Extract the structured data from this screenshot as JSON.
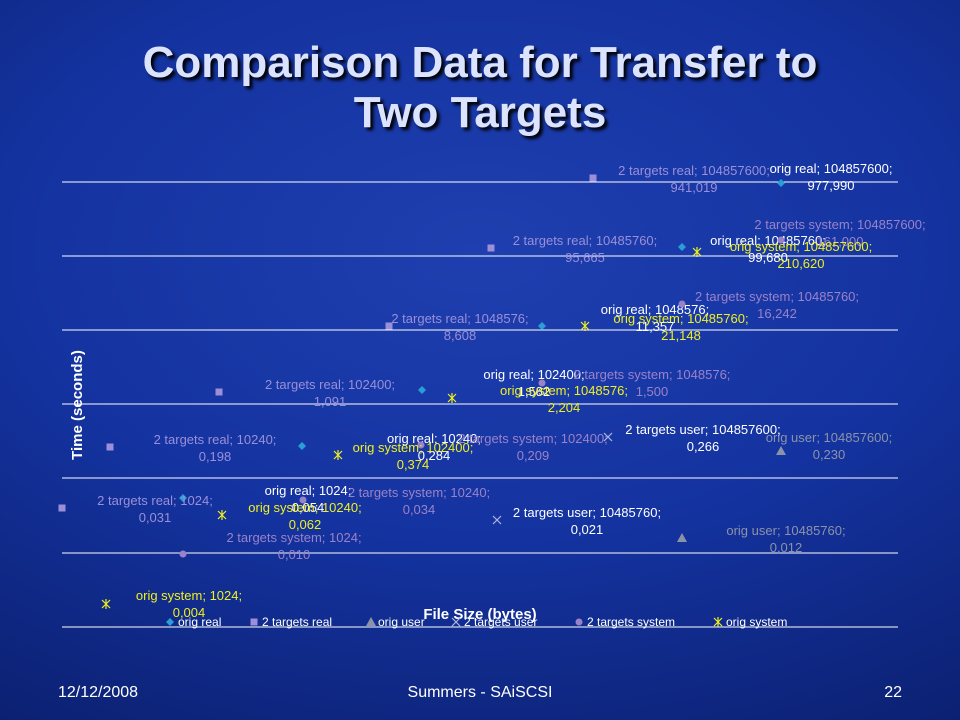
{
  "slide": {
    "title_line1": "Comparison Data for Transfer to",
    "title_line2": "Two Targets",
    "footer_left": "12/12/2008",
    "footer_center": "Summers - SAiSCSI",
    "footer_right": "22"
  },
  "colors": {
    "orig_real": "#2a9fd6",
    "two_targets_real": "#9a8fd8",
    "orig_user": "#8c93a8",
    "two_targets_user": "#b0b8e0",
    "two_targets_system": "#9a82c8",
    "orig_system": "#f0f020",
    "gridline": "#ffffff"
  },
  "chart_data": {
    "type": "scatter",
    "xlabel": "File Size (bytes)",
    "ylabel": "Time (seconds)",
    "x_scale": "log",
    "y_scale": "log",
    "grid": true,
    "legend_position": "bottom",
    "series": [
      {
        "name": "orig real",
        "marker": "diamond",
        "labels": [
          "orig real; 1024; 0,054",
          "orig real; 10240; 0,284",
          "orig real; 102400; 1,582",
          "orig real; 1048576; 11,357",
          "orig real; 10485760; 99,680",
          "orig real; 104857600; 977,990"
        ]
      },
      {
        "name": "2 targets real",
        "marker": "square",
        "labels": [
          "2 targets real; 1024; 0,031",
          "2 targets real; 10240; 0,198",
          "2 targets real; 102400; 1,091",
          "2 targets real; 1048576; 8,608",
          "2 targets real; 10485760; 95,665",
          "2 targets real; 104857600; 941,019"
        ]
      },
      {
        "name": "orig user",
        "marker": "triangle",
        "labels": [
          "orig user; 10485760; 0,012",
          "orig user; 104857600; 0,230"
        ]
      },
      {
        "name": "2 targets user",
        "marker": "x",
        "labels": [
          "2 targets user; 10485760; 0,021",
          "2 targets user; 104857600; 0,266"
        ]
      },
      {
        "name": "2 targets system",
        "marker": "circle",
        "labels": [
          "2 targets system; 1024; 0,010",
          "2 targets system; 10240; 0,034",
          "2 targets system; 102400; 0,209",
          "2 targets system; 1048576; 1,500",
          "2 targets system; 10485760; 16,242",
          "2 targets system; 104857600; 161,000"
        ]
      },
      {
        "name": "orig system",
        "marker": "star",
        "labels": [
          "orig system; 1024; 0,004",
          "orig system; 10240; 0,062",
          "orig system; 102400; 0,374",
          "orig system; 1048576; 2,204",
          "orig system; 10485760; 21,148",
          "orig system; 104857600; 210,620"
        ]
      }
    ]
  }
}
